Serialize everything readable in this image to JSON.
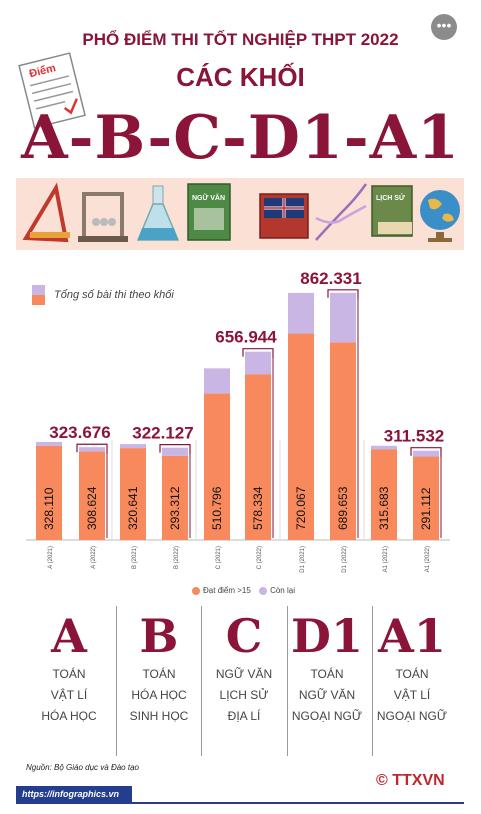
{
  "header": {
    "line1": "PHỔ ĐIỂM THI TỐT NGHIỆP THPT 2022",
    "line2": "CÁC KHỐI",
    "line3": "A-B-C-D1-A1",
    "paper_label": "Điểm"
  },
  "more_button": "•••",
  "chart_data": {
    "type": "bar",
    "stacked": true,
    "categories": [
      "A (2021)",
      "A (2022)",
      "B (2021)",
      "B (2022)",
      "C (2021)",
      "C (2022)",
      "D1 (2021)",
      "D1 (2022)",
      "A1 (2021)",
      "A1 (2022)"
    ],
    "series": [
      {
        "name": "Đạt điểm >15",
        "color": "#f7895c",
        "values": [
          328110,
          308624,
          320641,
          293312,
          510796,
          578334,
          720067,
          689653,
          315683,
          291112
        ]
      },
      {
        "name": "Còn lại",
        "color": "#c9b6e4",
        "values": [
          14000,
          15052,
          14000,
          28815,
          88000,
          78610,
          142000,
          172678,
          13000,
          20420
        ]
      }
    ],
    "series_labels": [
      "328.110",
      "308.624",
      "320.641",
      "293.312",
      "510.796",
      "578.334",
      "720.067",
      "689.653",
      "315.683",
      "291.112"
    ],
    "totals": [
      {
        "category": "A (2022)",
        "value": 323676,
        "label": "323.676"
      },
      {
        "category": "B (2022)",
        "value": 322127,
        "label": "322.127"
      },
      {
        "category": "C (2022)",
        "value": 656944,
        "label": "656.944"
      },
      {
        "category": "D1 (2022)",
        "value": 862331,
        "label": "862.331"
      },
      {
        "category": "A1 (2022)",
        "value": 311532,
        "label": "311.532"
      }
    ],
    "legend_title": "Tổng số bài thi theo khối",
    "ylim": [
      0,
      900000
    ],
    "grid": false,
    "legend_position": "bottom"
  },
  "blocks": [
    {
      "letter": "A",
      "subjects": [
        "TOÁN",
        "VẬT LÍ",
        "HÓA HỌC"
      ]
    },
    {
      "letter": "B",
      "subjects": [
        "TOÁN",
        "HÓA HỌC",
        "SINH HỌC"
      ]
    },
    {
      "letter": "C",
      "subjects": [
        "NGỮ VĂN",
        "LỊCH SỬ",
        "ĐỊA LÍ"
      ]
    },
    {
      "letter": "D1",
      "subjects": [
        "TOÁN",
        "NGỮ VĂN",
        "NGOẠI NGỮ"
      ]
    },
    {
      "letter": "A1",
      "subjects": [
        "TOÁN",
        "VẬT LÍ",
        "NGOẠI NGỮ"
      ]
    }
  ],
  "icons": [
    "ruler-triangle-icon",
    "newtons-cradle-icon",
    "flask-icon",
    "literature-book-icon",
    "english-book-icon",
    "dna-icon",
    "history-book-icon",
    "globe-icon"
  ],
  "book_labels": {
    "literature": "NGỮ VĂN",
    "history": "LỊCH SỬ"
  },
  "source": "Nguồn: Bộ Giáo dục và Đào tạo",
  "footer": {
    "url": "https://infographics.vn",
    "copyright": "©",
    "logo": "TTXVN"
  },
  "colors": {
    "primary": "#8a1538",
    "pass": "#f7895c",
    "rest": "#c9b6e4",
    "strip": "#fbe0d6",
    "footer": "#243d8c"
  }
}
